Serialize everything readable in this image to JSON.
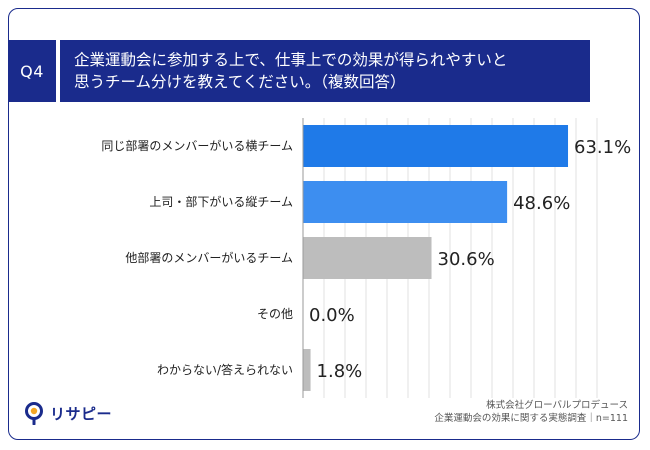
{
  "question": {
    "number": "Q4",
    "text": "企業運動会に参加する上で、仕事上での効果が得られやすいと\n思うチーム分けを教えてください。（複数回答）"
  },
  "chart_data": {
    "type": "bar",
    "orientation": "horizontal",
    "categories": [
      "同じ部署のメンバーがいる横チーム",
      "上司・部下がいる縦チーム",
      "他部署のメンバーがいるチーム",
      "その他",
      "わからない/答えられない"
    ],
    "values": [
      63.1,
      48.6,
      30.6,
      0.0,
      1.8
    ],
    "value_labels": [
      "63.1%",
      "48.6%",
      "30.6%",
      "0.0%",
      "1.8%"
    ],
    "colors": [
      "#1f7ae8",
      "#3d8ef0",
      "#bdbdbd",
      "#bdbdbd",
      "#bdbdbd"
    ],
    "xlim": [
      0,
      70
    ],
    "grid": true
  },
  "footer": {
    "logo_text": "リサピー",
    "source_line1": "株式会社グローバルプロデュース",
    "source_line2": "企業運動会の効果に関する実態調査｜n=111"
  },
  "colors": {
    "navy": "#1a2b8c",
    "accent_orange": "#f5a623",
    "grid": "#e2e2e2"
  }
}
